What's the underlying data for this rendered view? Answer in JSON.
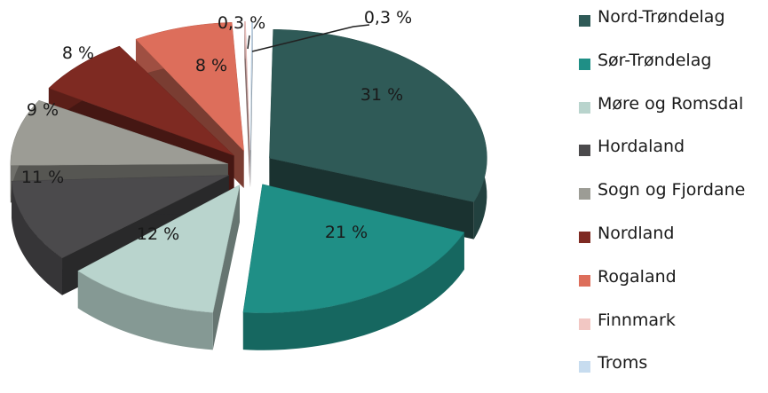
{
  "chart_data": {
    "type": "pie",
    "style": "3d-exploded",
    "legend_position": "right",
    "slices": [
      {
        "name": "Nord-Trøndelag",
        "value": 31,
        "label": "31 %",
        "color": "#2f5a57"
      },
      {
        "name": "Sør-Trøndelag",
        "value": 21,
        "label": "21 %",
        "color": "#1f8f86"
      },
      {
        "name": "Møre og Romsdal",
        "value": 12,
        "label": "12 %",
        "color": "#b9d4cd"
      },
      {
        "name": "Hordaland",
        "value": 11,
        "label": "11 %",
        "color": "#4b4a4c"
      },
      {
        "name": "Sogn og Fjordane",
        "value": 9,
        "label": "9 %",
        "color": "#9c9c95"
      },
      {
        "name": "Nordland",
        "value": 8,
        "label": "8 %",
        "color": "#7e2a22"
      },
      {
        "name": "Rogaland",
        "value": 8,
        "label": "8 %",
        "color": "#dd6e5b"
      },
      {
        "name": "Finnmark",
        "value": 0.3,
        "label": "0,3 %",
        "color": "#f2c7c3"
      },
      {
        "name": "Troms",
        "value": 0.3,
        "label": "0,3 %",
        "color": "#c7dcef"
      }
    ]
  }
}
